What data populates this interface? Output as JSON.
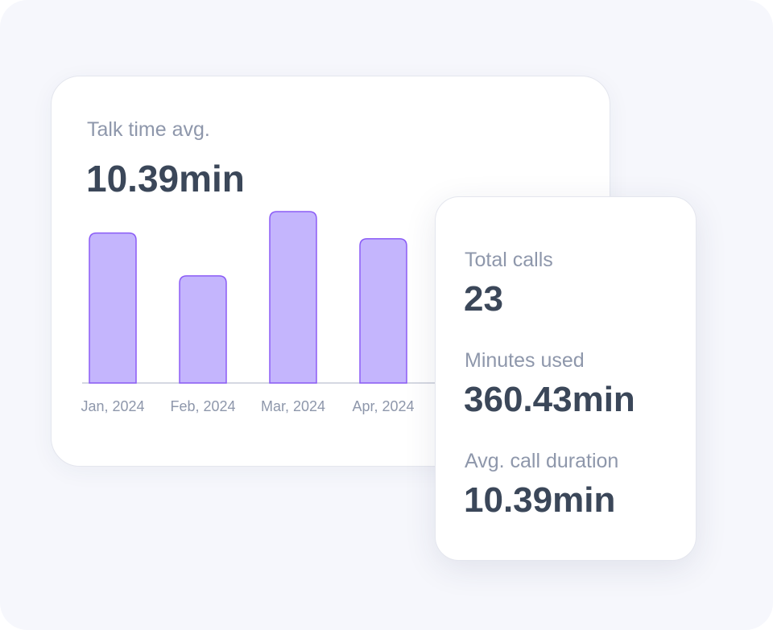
{
  "talk_time": {
    "label": "Talk time avg.",
    "value": "10.39min"
  },
  "stats": {
    "total_calls": {
      "label": "Total calls",
      "value": "23"
    },
    "minutes_used": {
      "label": "Minutes used",
      "value": "360.43min"
    },
    "avg_call_duration": {
      "label": "Avg. call duration",
      "value": "10.39min"
    }
  },
  "colors": {
    "bar_fill": "#c4b5fd",
    "bar_stroke": "#8b5cf6",
    "baseline": "#c7ccd8"
  },
  "chart_data": {
    "type": "bar",
    "title": "Talk time avg.",
    "categories": [
      "Jan, 2024",
      "Feb, 2024",
      "Mar, 2024",
      "Apr, 2024"
    ],
    "values": [
      10.5,
      7.5,
      12.0,
      10.1
    ],
    "ylim": [
      0,
      12.0
    ],
    "grid": false,
    "xlabel": "",
    "ylabel": ""
  }
}
